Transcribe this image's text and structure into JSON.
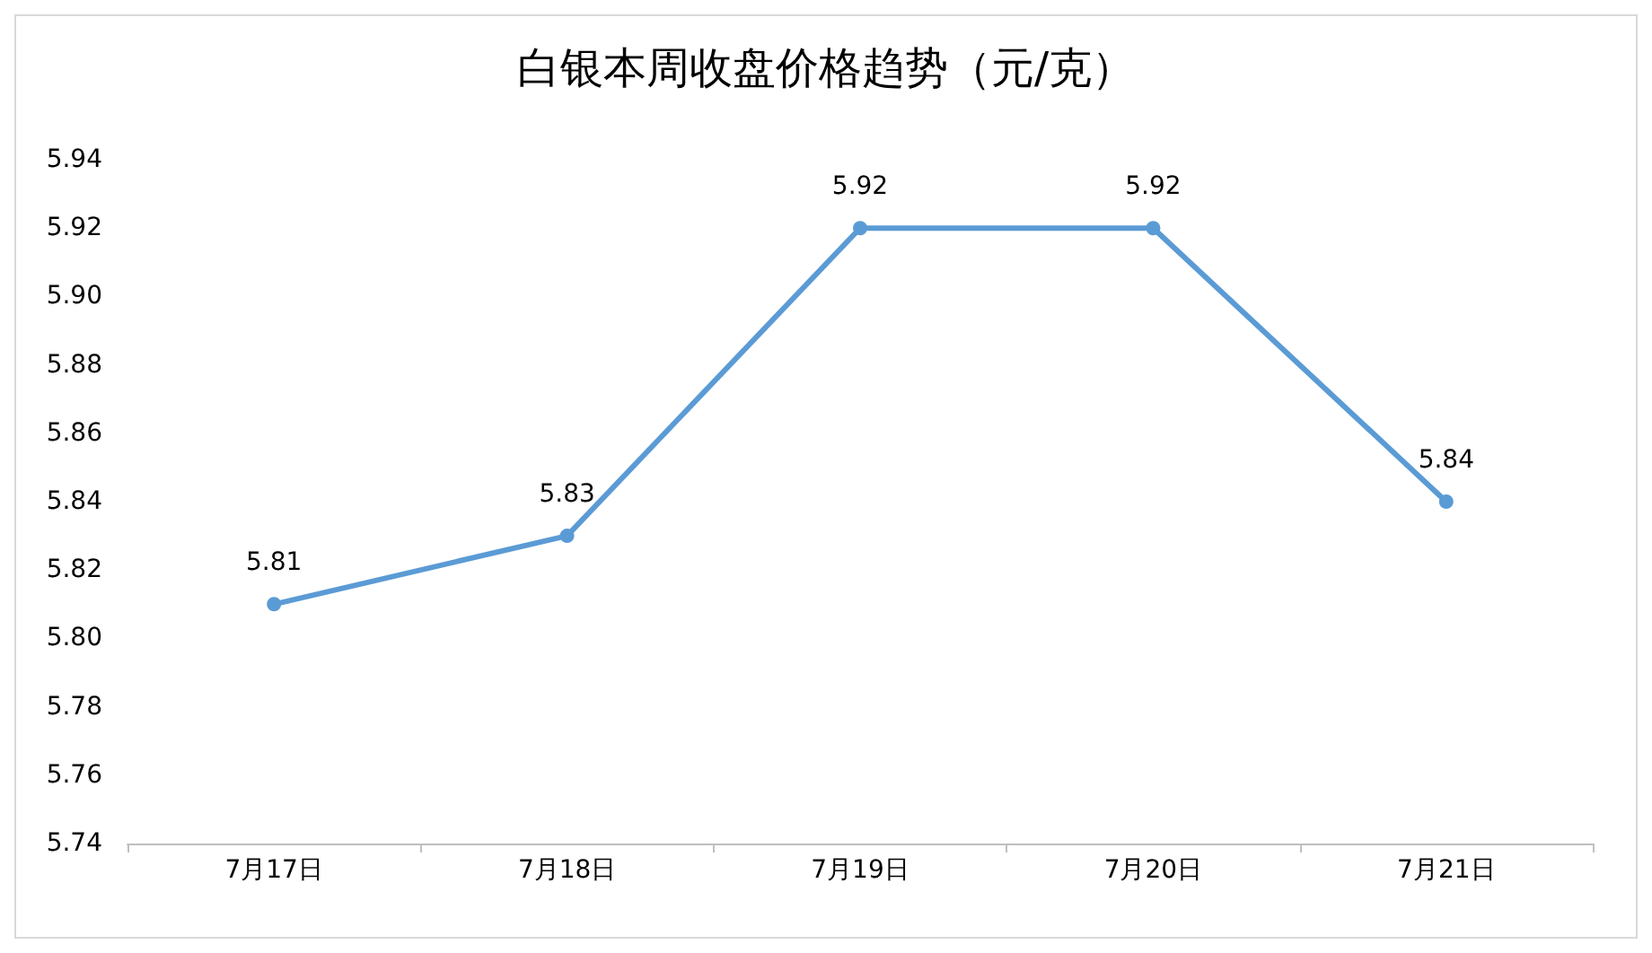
{
  "chart_data": {
    "type": "line",
    "title": "白银本周收盘价格趋势（元/克）",
    "categories": [
      "7月17日",
      "7月18日",
      "7月19日",
      "7月20日",
      "7月21日"
    ],
    "series": [
      {
        "color": "#5b9bd5",
        "values": [
          5.81,
          5.83,
          5.92,
          5.92,
          5.84
        ]
      }
    ],
    "ylim": [
      5.74,
      5.94
    ],
    "yticks": [
      {
        "value": 5.74,
        "label": "5.74"
      },
      {
        "value": 5.76,
        "label": "5.76"
      },
      {
        "value": 5.78,
        "label": "5.78"
      },
      {
        "value": 5.8,
        "label": "5.80"
      },
      {
        "value": 5.82,
        "label": "5.82"
      },
      {
        "value": 5.84,
        "label": "5.84"
      },
      {
        "value": 5.86,
        "label": "5.86"
      },
      {
        "value": 5.88,
        "label": "5.88"
      },
      {
        "value": 5.9,
        "label": "5.90"
      },
      {
        "value": 5.92,
        "label": "5.92"
      },
      {
        "value": 5.94,
        "label": "5.94"
      }
    ],
    "data_labels": true,
    "marker": "circle",
    "line_style": "solid",
    "grid": false
  }
}
